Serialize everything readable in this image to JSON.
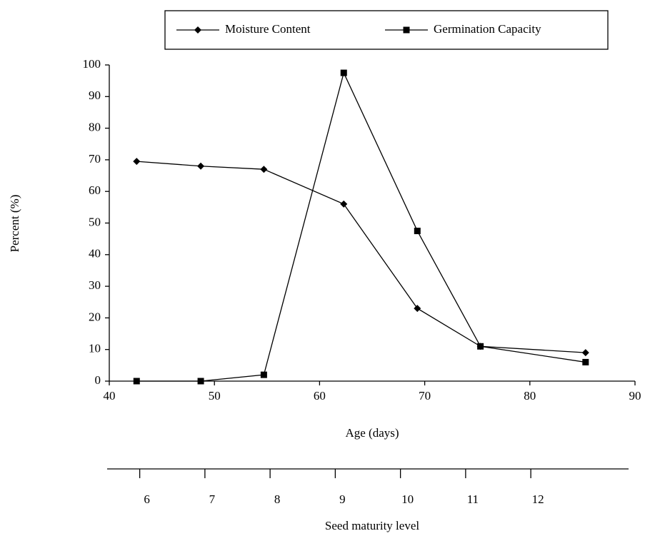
{
  "chart_data": {
    "type": "line",
    "x_label": "Age (days)",
    "y_label": "Percent (%)",
    "x2_label": "Seed maturity level",
    "x": [
      42.6,
      48.7,
      54.7,
      62.3,
      69.3,
      75.3,
      85.3
    ],
    "series": [
      {
        "name": "Moisture Content",
        "color": "#000000",
        "marker": "diamond",
        "values": [
          69.5,
          68,
          67,
          56,
          23,
          11,
          9
        ]
      },
      {
        "name": "Germination Capacity",
        "color": "#000000",
        "marker": "square",
        "values": [
          0,
          0,
          2,
          97.5,
          47.5,
          11,
          6
        ]
      }
    ],
    "xlim": [
      40,
      90
    ],
    "xticks": [
      40,
      50,
      60,
      70,
      80,
      90
    ],
    "ylim": [
      0,
      100
    ],
    "yticks": [
      0,
      10,
      20,
      30,
      40,
      50,
      60,
      70,
      80,
      90,
      100
    ],
    "x2lim": [
      5.5,
      13.5
    ],
    "x2ticks": [
      6,
      7,
      8,
      9,
      10,
      11,
      12
    ],
    "legend": "top",
    "grid": false
  }
}
